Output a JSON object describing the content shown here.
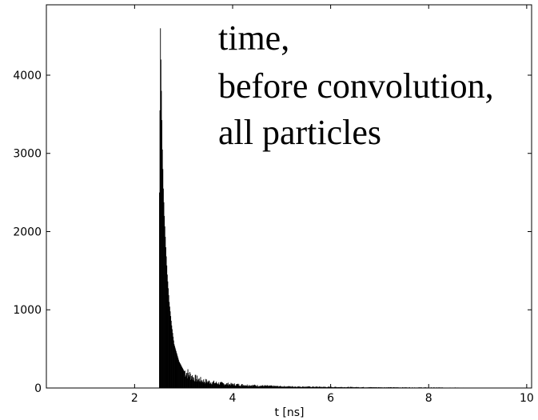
{
  "chart_data": {
    "type": "bar",
    "xlabel": "t [ns]",
    "ylabel": "",
    "xlim": [
      0.2,
      10.1
    ],
    "ylim": [
      0,
      4900
    ],
    "xticks": [
      "2",
      "4",
      "6",
      "8",
      "10"
    ],
    "yticks": [
      "0",
      "1000",
      "2000",
      "3000",
      "4000"
    ],
    "annotation": [
      "time,",
      "before convolution,",
      "all particles"
    ],
    "bar_color": "#000000",
    "peak": {
      "t": 2.53,
      "value": 4600
    },
    "histogram": {
      "x": [
        2.5,
        2.52,
        2.54,
        2.56,
        2.58,
        2.6,
        2.63,
        2.66,
        2.7,
        2.75,
        2.8,
        2.9,
        3.0,
        3.2,
        3.4,
        3.7,
        4.0,
        4.5,
        5.0,
        6.0,
        7.0,
        8.5
      ],
      "values": [
        2500,
        4600,
        3800,
        3050,
        2550,
        2200,
        1800,
        1450,
        1100,
        800,
        560,
        340,
        220,
        130,
        90,
        60,
        45,
        30,
        20,
        12,
        8,
        5
      ]
    }
  }
}
